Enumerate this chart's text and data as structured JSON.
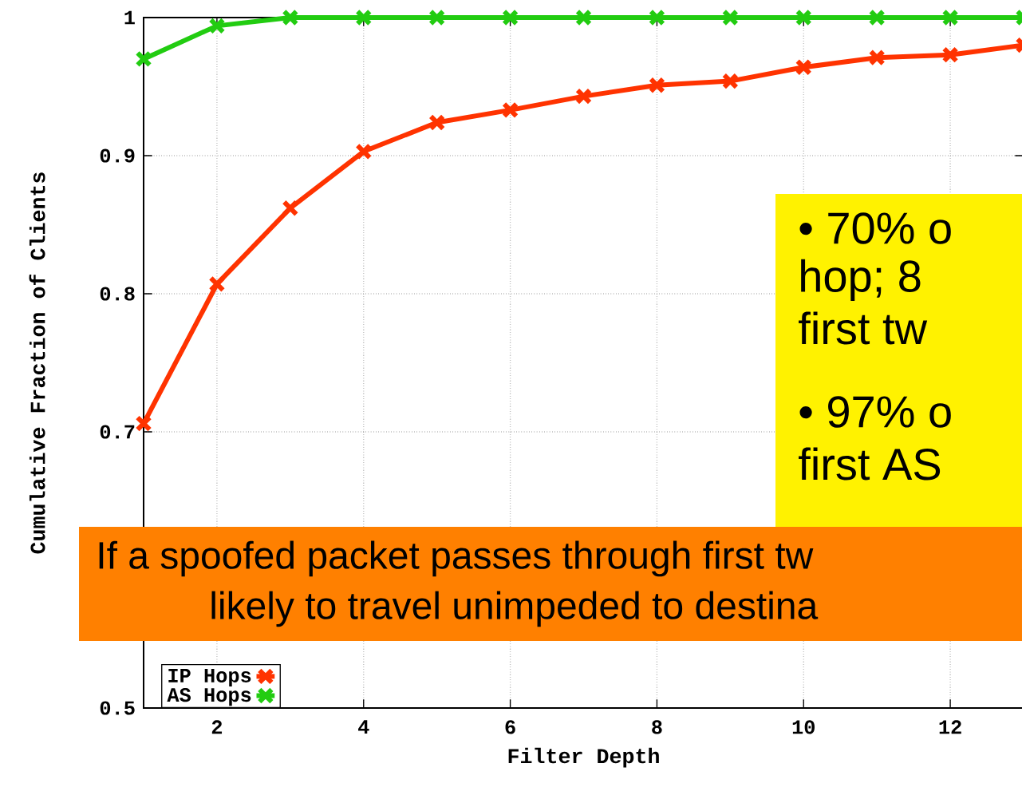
{
  "chart_data": {
    "type": "line",
    "xlabel": "Filter Depth",
    "ylabel": "Cumulative Fraction of Clients",
    "x": [
      1,
      2,
      3,
      4,
      5,
      6,
      7,
      8,
      9,
      10,
      11,
      12,
      13
    ],
    "series": [
      {
        "name": "IP Hops",
        "color": "#ff3300",
        "values": [
          0.706,
          0.807,
          0.862,
          0.903,
          0.924,
          0.933,
          0.943,
          0.951,
          0.954,
          0.964,
          0.971,
          0.973,
          0.98
        ]
      },
      {
        "name": "AS Hops",
        "color": "#22cc11",
        "values": [
          0.97,
          0.994,
          1,
          1,
          1,
          1,
          1,
          1,
          1,
          1,
          1,
          1,
          1
        ]
      }
    ],
    "xlim": [
      1,
      13
    ],
    "ylim": [
      0.5,
      1
    ],
    "xticks": [
      2,
      4,
      6,
      8,
      10,
      12
    ],
    "yticks": [
      0.5,
      {
        "value": 0.6,
        "label": null
      },
      0.7,
      0.8,
      0.9,
      1
    ],
    "grid": true,
    "legend": "bottom left",
    "marker": "cross",
    "line_style": "solid",
    "annotations": [
      "• 70% o",
      "hop; 8",
      "first tw",
      "• 97% o",
      "first AS",
      "If a spoofed packet passes through first tw",
      "likely to travel unimpeded to destina"
    ]
  }
}
